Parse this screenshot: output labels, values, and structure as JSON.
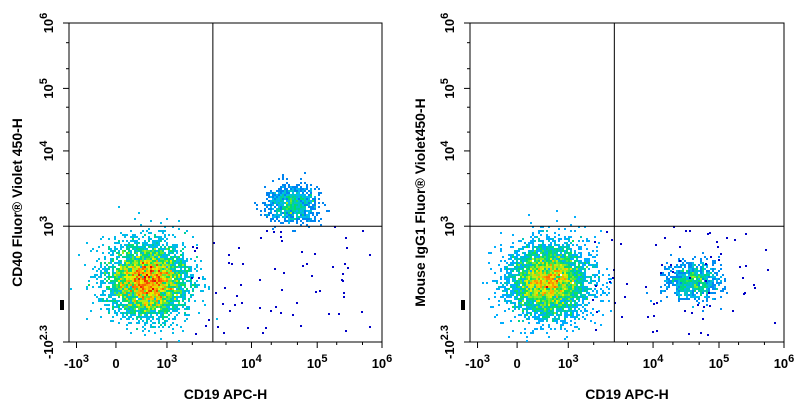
{
  "chart_data": [
    {
      "type": "scatter",
      "subtype": "flow-cytometry-density-plot",
      "xlabel": "CD19 APC-H",
      "ylabel": "CD40 Fluor® Violet 450-H",
      "x_ticks": [
        {
          "base": "-10",
          "exp": "3",
          "value": -1000
        },
        {
          "base": "0",
          "exp": "",
          "value": 0
        },
        {
          "base": "10",
          "exp": "3",
          "value": 1000
        },
        {
          "base": "10",
          "exp": "4",
          "value": 10000
        },
        {
          "base": "10",
          "exp": "5",
          "value": 100000
        },
        {
          "base": "10",
          "exp": "6",
          "value": 1000000
        }
      ],
      "y_ticks": [
        {
          "base": "-10",
          "exp": "2.3",
          "value": -200
        },
        {
          "base": "10",
          "exp": "3",
          "value": 1000
        },
        {
          "base": "10",
          "exp": "4",
          "value": 10000
        },
        {
          "base": "10",
          "exp": "5",
          "value": 100000
        },
        {
          "base": "10",
          "exp": "6",
          "value": 1000000
        }
      ],
      "scale": "biexponential",
      "quadrant_gate": {
        "x": 3500,
        "y": 1000
      },
      "populations": [
        {
          "x_center": 350,
          "y_center": 150,
          "density": "high",
          "share": 0.86
        },
        {
          "x_center": 40000,
          "y_center": 2000,
          "density": "medium",
          "share": 0.14
        }
      ],
      "colormap": [
        "#0000c8",
        "#00b4ff",
        "#00e060",
        "#e8f000",
        "#ff8000",
        "#e00000"
      ]
    },
    {
      "type": "scatter",
      "subtype": "flow-cytometry-density-plot",
      "xlabel": "CD19 APC-H",
      "ylabel": "Mouse IgG1 Fluor® Violet450-H",
      "x_ticks": [
        {
          "base": "-10",
          "exp": "3",
          "value": -1000
        },
        {
          "base": "0",
          "exp": "",
          "value": 0
        },
        {
          "base": "10",
          "exp": "3",
          "value": 1000
        },
        {
          "base": "10",
          "exp": "4",
          "value": 10000
        },
        {
          "base": "10",
          "exp": "5",
          "value": 100000
        },
        {
          "base": "10",
          "exp": "6",
          "value": 1000000
        }
      ],
      "y_ticks": [
        {
          "base": "-10",
          "exp": "2.3",
          "value": -200
        },
        {
          "base": "10",
          "exp": "3",
          "value": 1000
        },
        {
          "base": "10",
          "exp": "4",
          "value": 10000
        },
        {
          "base": "10",
          "exp": "5",
          "value": 100000
        },
        {
          "base": "10",
          "exp": "6",
          "value": 1000000
        }
      ],
      "scale": "biexponential",
      "quadrant_gate": {
        "x": 3500,
        "y": 1000
      },
      "populations": [
        {
          "x_center": 350,
          "y_center": 150,
          "density": "high",
          "share": 0.86
        },
        {
          "x_center": 40000,
          "y_center": 150,
          "density": "medium",
          "share": 0.14
        }
      ],
      "colormap": [
        "#0000c8",
        "#00b4ff",
        "#00e060",
        "#e8f000",
        "#ff8000",
        "#e00000"
      ]
    }
  ]
}
